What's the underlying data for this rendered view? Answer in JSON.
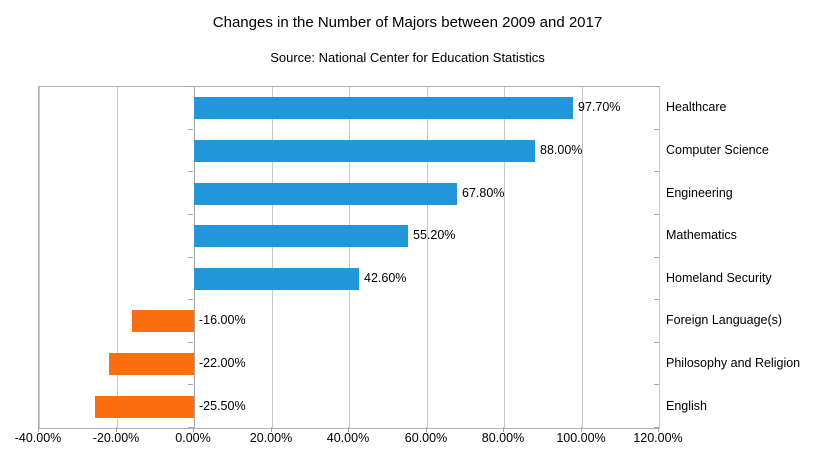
{
  "chart": {
    "title": "Changes in the Number of Majors between 2009 and 2017",
    "subtitle": "Source: National Center for Education Statistics"
  },
  "chart_data": {
    "type": "bar",
    "orientation": "horizontal",
    "title": "Changes in the Number of Majors between 2009 and 2017",
    "subtitle": "Source: National Center for Education Statistics",
    "categories": [
      "Healthcare",
      "Computer Science",
      "Engineering",
      "Mathematics",
      "Homeland Security",
      "Foreign Language(s)",
      "Philosophy and Religion",
      "English"
    ],
    "values": [
      97.7,
      88.0,
      67.8,
      55.2,
      42.6,
      -16.0,
      -22.0,
      -25.5
    ],
    "value_labels": [
      "97.70%",
      "88.00%",
      "67.80%",
      "55.20%",
      "42.60%",
      "-16.00%",
      "-22.00%",
      "-25.50%"
    ],
    "xlim": [
      -40,
      120
    ],
    "x_ticks": [
      -40,
      -20,
      0,
      20,
      40,
      60,
      80,
      100,
      120
    ],
    "x_tick_labels": [
      "-40.00%",
      "-20.00%",
      "0.00%",
      "20.00%",
      "40.00%",
      "60.00%",
      "80.00%",
      "100.00%",
      "120.00%"
    ],
    "grid": "vertical",
    "legend": "none",
    "colors": {
      "positive_bar": "#2196d8",
      "negative_bar": "#fa6e0e",
      "gridline": "#c9c9c9",
      "axis": "#a6a6a6",
      "text": "#000000"
    }
  }
}
